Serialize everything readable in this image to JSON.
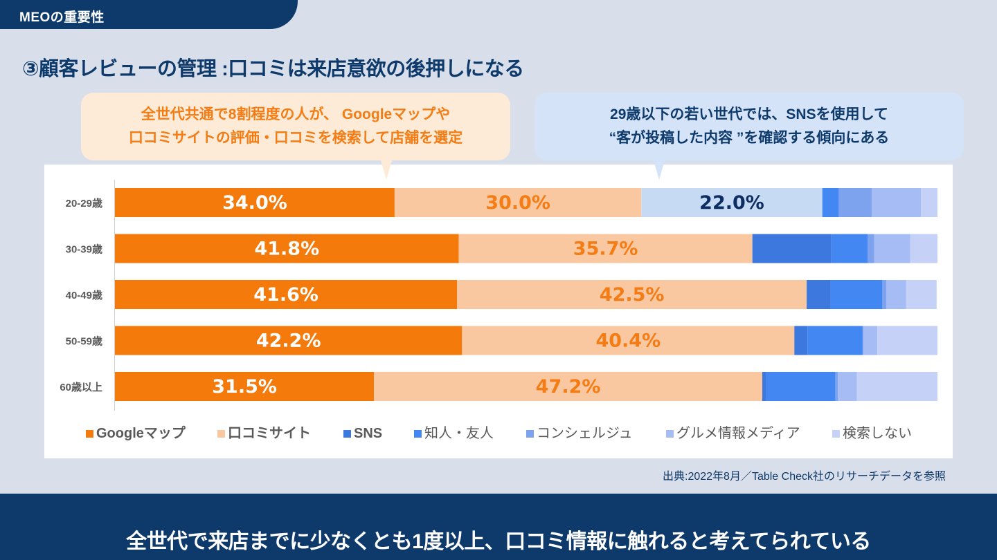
{
  "header": {
    "tab_label": "MEOの重要性"
  },
  "title": "③顧客レビューの管理 :口コミは来店意欲の後押しになる",
  "bubbles": {
    "left": {
      "line1": "全世代共通で8割程度の人が、 Googleマップや",
      "line2": "口コミサイトの評価・口コミを検索して店舗を選定"
    },
    "right": {
      "line1": "29歳以下の若い世代では、SNSを使用して",
      "line2": "“客が投稿した内容 ”を確認する傾向にある"
    }
  },
  "source": "出典:2022年8月／Table Check社のリサーチデータを参照",
  "footer": "全世代で来店までに少なくとも1度以上、口コミ情報に触れると考えてられている",
  "colors": {
    "navy": "#0e3a6b",
    "orange": "#f47c14",
    "highlight_sns": "#c6dbf3"
  },
  "chart_data": {
    "type": "bar",
    "orientation": "horizontal",
    "stacked": true,
    "percent_stacked": true,
    "title": "",
    "xlabel": "",
    "ylabel": "",
    "xlim": [
      0,
      100
    ],
    "grid": false,
    "legend_position": "bottom",
    "categories": [
      "20-29歳",
      "30-39歳",
      "40-49歳",
      "50-59歳",
      "60歳以上"
    ],
    "series": [
      {
        "name": "Googleマップ",
        "color": "#f47b0b",
        "label_color": "#ffffff",
        "values": [
          34.0,
          41.8,
          41.6,
          42.2,
          31.5
        ],
        "labels": [
          "34.0%",
          "41.8%",
          "41.6%",
          "42.2%",
          "31.5%"
        ]
      },
      {
        "name": "口コミサイト",
        "color": "#f9c8a1",
        "label_color": "#f47c14",
        "values": [
          30.0,
          35.7,
          42.5,
          40.4,
          47.2
        ],
        "labels": [
          "30.0%",
          "35.7%",
          "42.5%",
          "40.4%",
          "47.2%"
        ]
      },
      {
        "name": "SNS",
        "color": "#3d78df",
        "label_color": "#0e2e63",
        "values": [
          22.0,
          9.6,
          2.9,
          1.6,
          0.5
        ],
        "labels": [
          "22.0%",
          "",
          "",
          "",
          ""
        ],
        "highlight": [
          0
        ]
      },
      {
        "name": "知人・友人",
        "color": "#4287f2",
        "values": [
          2.0,
          4.4,
          6.3,
          6.7,
          8.4
        ],
        "labels": [
          "",
          "",
          "",
          "",
          ""
        ]
      },
      {
        "name": "コンシェルジュ",
        "color": "#7ea3ee",
        "values": [
          4.0,
          0.8,
          0.5,
          0.1,
          0.3
        ],
        "labels": [
          "",
          "",
          "",
          "",
          ""
        ]
      },
      {
        "name": "グルメ情報メディア",
        "color": "#a6bcf5",
        "values": [
          6.0,
          4.4,
          2.4,
          1.7,
          2.3
        ],
        "labels": [
          "",
          "",
          "",
          "",
          ""
        ]
      },
      {
        "name": "検索しない",
        "color": "#c5d1f7",
        "values": [
          2.0,
          3.3,
          3.7,
          7.3,
          9.8
        ],
        "labels": [
          "",
          "",
          "",
          "",
          ""
        ]
      }
    ]
  }
}
